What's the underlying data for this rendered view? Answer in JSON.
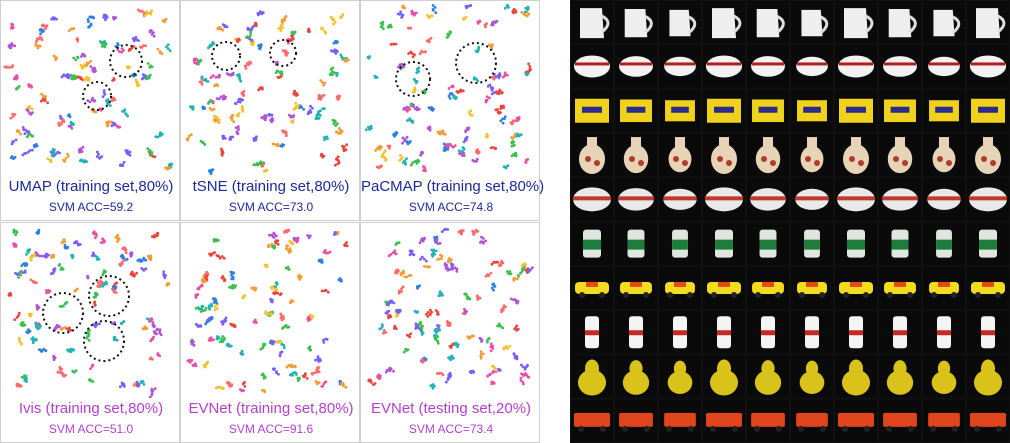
{
  "embedding_panels": [
    {
      "method": "UMAP",
      "title": "UMAP (training set,80%)",
      "acc": "SVM ACC=59.2",
      "row": 1
    },
    {
      "method": "tSNE",
      "title": "tSNE (training set,80%)",
      "acc": "SVM ACC=73.0",
      "row": 1
    },
    {
      "method": "PaCMAP",
      "title": "PaCMAP (training set,80%)",
      "acc": "SVM ACC=74.8",
      "row": 1
    },
    {
      "method": "Ivis",
      "title": "Ivis (training set,80%)",
      "acc": "SVM ACC=51.0",
      "row": 2
    },
    {
      "method": "EVNet",
      "title": "EVNet (training set,80%)",
      "acc": "SVM ACC=91.6",
      "row": 2
    },
    {
      "method": "EVNet",
      "title": "EVNet (testing set,20%)",
      "acc": "SVM ACC=73.4",
      "row": 2
    }
  ],
  "colors": {
    "row1_text": "#1b2a9c",
    "row2_text": "#b53fd1",
    "palette": [
      "#e8453c",
      "#f39c34",
      "#2f7fe0",
      "#3bbf4e",
      "#b153d9",
      "#e84fa6",
      "#21b3b3",
      "#f2c230",
      "#7a5cff",
      "#ff6b6b"
    ],
    "image_grid_bg": "#111111"
  },
  "object_grid": {
    "columns": 10,
    "rows": [
      {
        "object": "pitcher"
      },
      {
        "object": "cup"
      },
      {
        "object": "advil-box"
      },
      {
        "object": "vase"
      },
      {
        "object": "tub"
      },
      {
        "object": "bottle"
      },
      {
        "object": "toy-car"
      },
      {
        "object": "deodorant"
      },
      {
        "object": "pear"
      },
      {
        "object": "fire-truck"
      }
    ]
  }
}
